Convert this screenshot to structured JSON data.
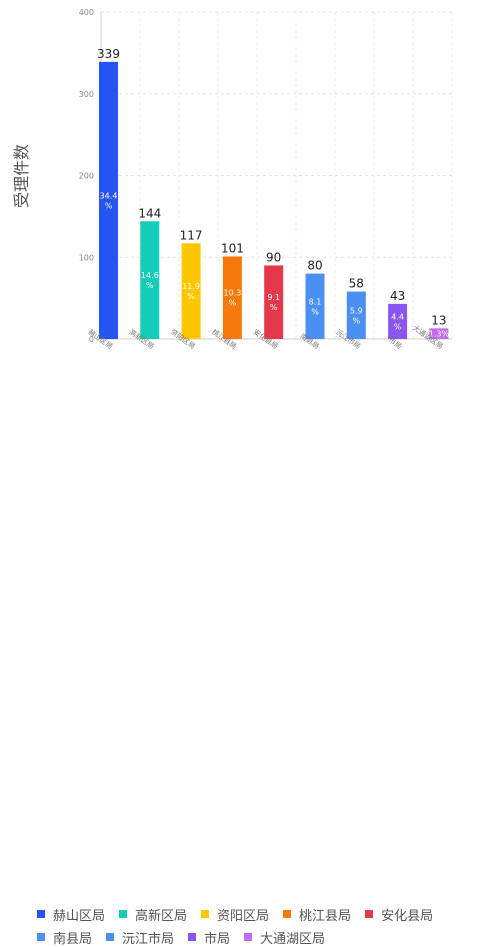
{
  "chart_data": {
    "type": "bar",
    "ylabel": "受理件数",
    "xlabel": "",
    "title": "",
    "ylim": [
      0,
      400
    ],
    "yticks": [
      0,
      100,
      200,
      300,
      400
    ],
    "grid": true,
    "legend_position": "bottom",
    "categories": [
      "赫山区局",
      "高新区局",
      "资阳区局",
      "桃江县局",
      "安化县局",
      "南县局",
      "沅江市局",
      "市局",
      "大通湖区局"
    ],
    "values": [
      339,
      144,
      117,
      101,
      90,
      80,
      58,
      43,
      13
    ],
    "percent_labels": [
      "34.4 %",
      "14.6 %",
      "11.9 %",
      "10.3 %",
      "9.1 %",
      "8.1 %",
      "5.9 %",
      "4.4 %",
      "1.3%"
    ],
    "colors": [
      "#2455f3",
      "#14ccb8",
      "#ffc600",
      "#f57a0b",
      "#e5384b",
      "#4c8ff2",
      "#4c8ff2",
      "#8b55f0",
      "#c06cf2"
    ],
    "legend": [
      {
        "label": "赫山区局",
        "color": "#2455f3"
      },
      {
        "label": "高新区局",
        "color": "#14ccb8"
      },
      {
        "label": "资阳区局",
        "color": "#ffc600"
      },
      {
        "label": "桃江县局",
        "color": "#f57a0b"
      },
      {
        "label": "安化县局",
        "color": "#e5384b"
      },
      {
        "label": "南县局",
        "color": "#4c8ff2"
      },
      {
        "label": "沅江市局",
        "color": "#4c8ff2"
      },
      {
        "label": "市局",
        "color": "#8b55f0"
      },
      {
        "label": "大通湖区局",
        "color": "#c06cf2"
      }
    ]
  }
}
